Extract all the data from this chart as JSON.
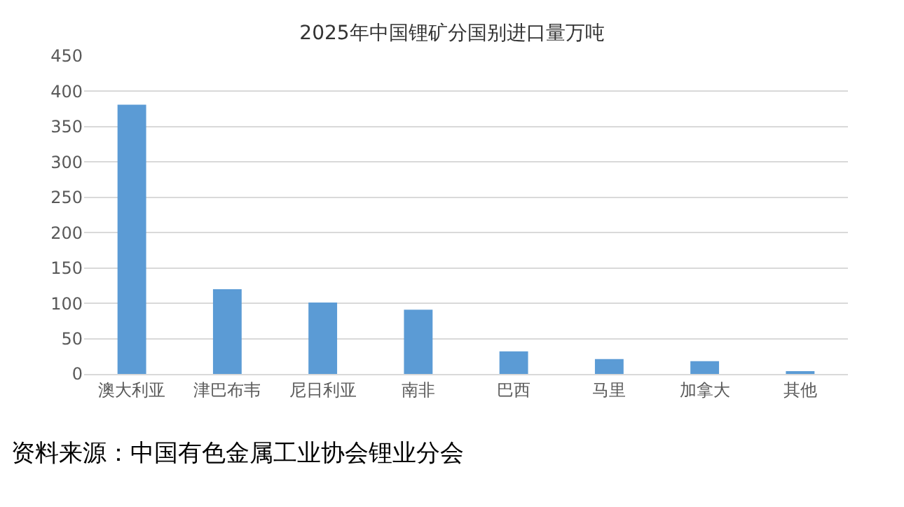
{
  "chart_data": {
    "type": "bar",
    "title": "2025年中国锂矿分国别进口量万吨",
    "categories": [
      "澳大利亚",
      "津巴布韦",
      "尼日利亚",
      "南非",
      "巴西",
      "马里",
      "加拿大",
      "其他"
    ],
    "values": [
      381,
      120,
      101,
      91,
      32,
      21,
      18,
      2
    ],
    "color": "#5b9bd5",
    "ylim": [
      0,
      450
    ],
    "yticks": [
      0,
      50,
      100,
      150,
      200,
      250,
      300,
      350,
      400,
      450
    ],
    "grid": "y",
    "annotations": [
      "资料来源：中国有色金属工业协会锂业分会"
    ]
  }
}
